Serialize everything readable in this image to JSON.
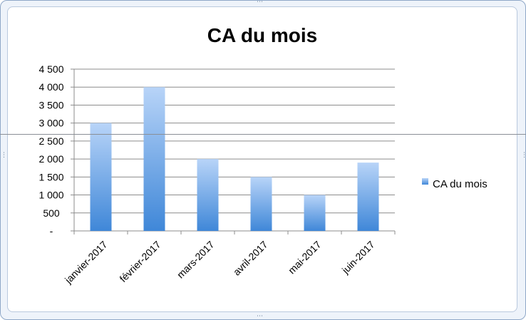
{
  "chart_data": {
    "type": "bar",
    "title": "CA du mois",
    "categories": [
      "janvier-2017",
      "février-2017",
      "mars-2017",
      "avril-2017",
      "mai-2017",
      "juin-2017"
    ],
    "series": [
      {
        "name": "CA du mois",
        "values": [
          3000,
          4000,
          2000,
          1500,
          1000,
          1900
        ]
      }
    ],
    "ylim": [
      0,
      4500
    ],
    "yticks": [
      0,
      500,
      1000,
      1500,
      2000,
      2500,
      3000,
      3500,
      4000,
      4500
    ],
    "ytick_labels": [
      "-",
      "500",
      "1 000",
      "1 500",
      "2 000",
      "2 500",
      "3 000",
      "3 500",
      "4 000",
      "4 500"
    ],
    "xlabel": "",
    "ylabel": "",
    "grid": true,
    "legend": "right",
    "colors": {
      "bar_top": "#b8d4f8",
      "bar_bottom": "#3f87d8",
      "grid": "#8c8c8c"
    }
  }
}
